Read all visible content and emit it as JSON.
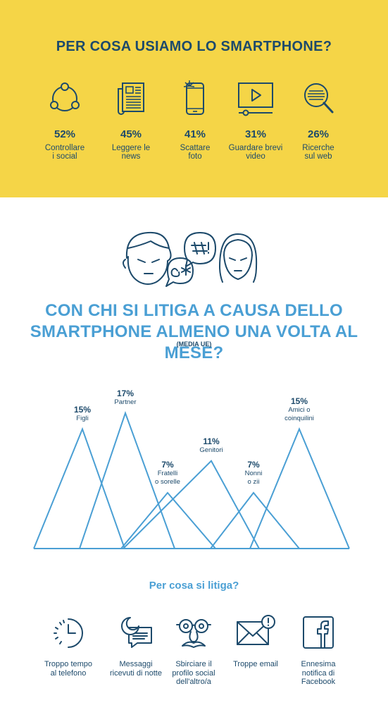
{
  "smartphone_usage": {
    "title": "PER COSA USIAMO LO SMARTPHONE?",
    "items": [
      {
        "percent": "52%",
        "label_line1": "Controllare",
        "label_line2": "i social",
        "icon": "share-network-icon"
      },
      {
        "percent": "45%",
        "label_line1": "Leggere le",
        "label_line2": "news",
        "icon": "newspaper-icon"
      },
      {
        "percent": "41%",
        "label_line1": "Scattare",
        "label_line2": "foto",
        "icon": "phone-flash-icon"
      },
      {
        "percent": "31%",
        "label_line1": "Guardare brevi",
        "label_line2": "video",
        "icon": "video-player-icon"
      },
      {
        "percent": "26%",
        "label_line1": "Ricerche",
        "label_line2": "sul web",
        "icon": "magnifier-icon"
      }
    ],
    "colors": {
      "background": "#f5d547",
      "text": "#1d4a6b"
    }
  },
  "arguments": {
    "title_line1": "CON CHI SI LITIGA A CAUSA DELLO",
    "title_line2": "SMARTPHONE ALMENO UNA VOLTA AL MESE?",
    "subtitle": "(MEDIA UE)",
    "colors": {
      "title": "#4a9fd4",
      "lines": "#4a9fd4"
    }
  },
  "chart_data": {
    "type": "area",
    "subtitle": "(MEDIA UE)",
    "categories": [
      "Figli",
      "Partner",
      "Fratelli o sorelle",
      "Genitori",
      "Nonni o zii",
      "Amici o coinquilini"
    ],
    "values": [
      15,
      17,
      7,
      11,
      7,
      15
    ],
    "labels": [
      {
        "pct": "15%",
        "line1": "Figli",
        "line2": ""
      },
      {
        "pct": "17%",
        "line1": "Partner",
        "line2": ""
      },
      {
        "pct": "7%",
        "line1": "Fratelli",
        "line2": "o sorelle"
      },
      {
        "pct": "11%",
        "line1": "Genitori",
        "line2": ""
      },
      {
        "pct": "7%",
        "line1": "Nonni",
        "line2": "o zii"
      },
      {
        "pct": "15%",
        "line1": "Amici o",
        "line2": "coinquilini"
      }
    ],
    "unit": "%",
    "ylim": [
      0,
      17
    ]
  },
  "reasons": {
    "title": "Per cosa si litiga?",
    "items": [
      {
        "line1": "Troppo tempo",
        "line2": "al telefono",
        "line3": "",
        "icon": "clock-icon"
      },
      {
        "line1": "Messaggi",
        "line2": "ricevuti di notte",
        "line3": "",
        "icon": "night-message-icon"
      },
      {
        "line1": "Sbirciare il",
        "line2": "profilo social",
        "line3": "dell'altro/a",
        "icon": "disguise-glasses-icon"
      },
      {
        "line1": "Troppe email",
        "line2": "",
        "line3": "",
        "icon": "email-alert-icon"
      },
      {
        "line1": "Ennesima",
        "line2": "notifica di",
        "line3": "Facebook",
        "icon": "facebook-icon"
      }
    ]
  }
}
